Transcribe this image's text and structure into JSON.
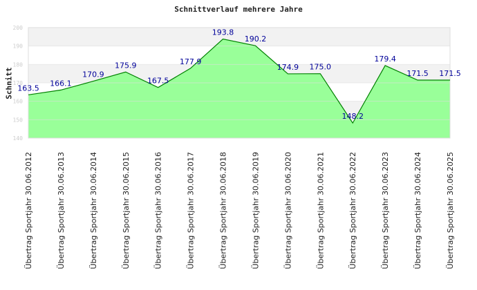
{
  "chart_data": {
    "type": "area",
    "title": "Schnittverlauf mehrere Jahre",
    "xlabel": "",
    "ylabel": "Schnitt",
    "ylim": [
      140,
      200
    ],
    "yticks": [
      140,
      150,
      160,
      170,
      180,
      190,
      200
    ],
    "grid": true,
    "categories": [
      "Übertrag Sportjahr 30.06.2012",
      "Übertrag Sportjahr 30.06.2013",
      "Übertrag Sportjahr 30.06.2014",
      "Übertrag Sportjahr 30.06.2015",
      "Übertrag Sportjahr 30.06.2016",
      "Übertrag Sportjahr 30.06.2017",
      "Übertrag Sportjahr 30.06.2018",
      "Übertrag Sportjahr 30.06.2019",
      "Übertrag Sportjahr 30.06.2020",
      "Übertrag Sportjahr 30.06.2021",
      "Übertrag Sportjahr 30.06.2022",
      "Übertrag Sportjahr 30.06.2023",
      "Übertrag Sportjahr 30.06.2024",
      "Übertrag Sportjahr 30.06.2025"
    ],
    "values": [
      163.5,
      166.1,
      170.9,
      175.9,
      167.5,
      177.9,
      193.8,
      190.2,
      174.9,
      175.0,
      148.2,
      179.4,
      171.5,
      171.5
    ],
    "labels": [
      "163.5",
      "166.1",
      "170.9",
      "175.9",
      "167.5",
      "177.9",
      "193.8",
      "190.2",
      "174.9",
      "175.0",
      "148.2",
      "179.4",
      "171.5",
      "171.5"
    ],
    "colors": {
      "fill": "#99ff99",
      "line": "#008000",
      "label": "#000099"
    }
  }
}
